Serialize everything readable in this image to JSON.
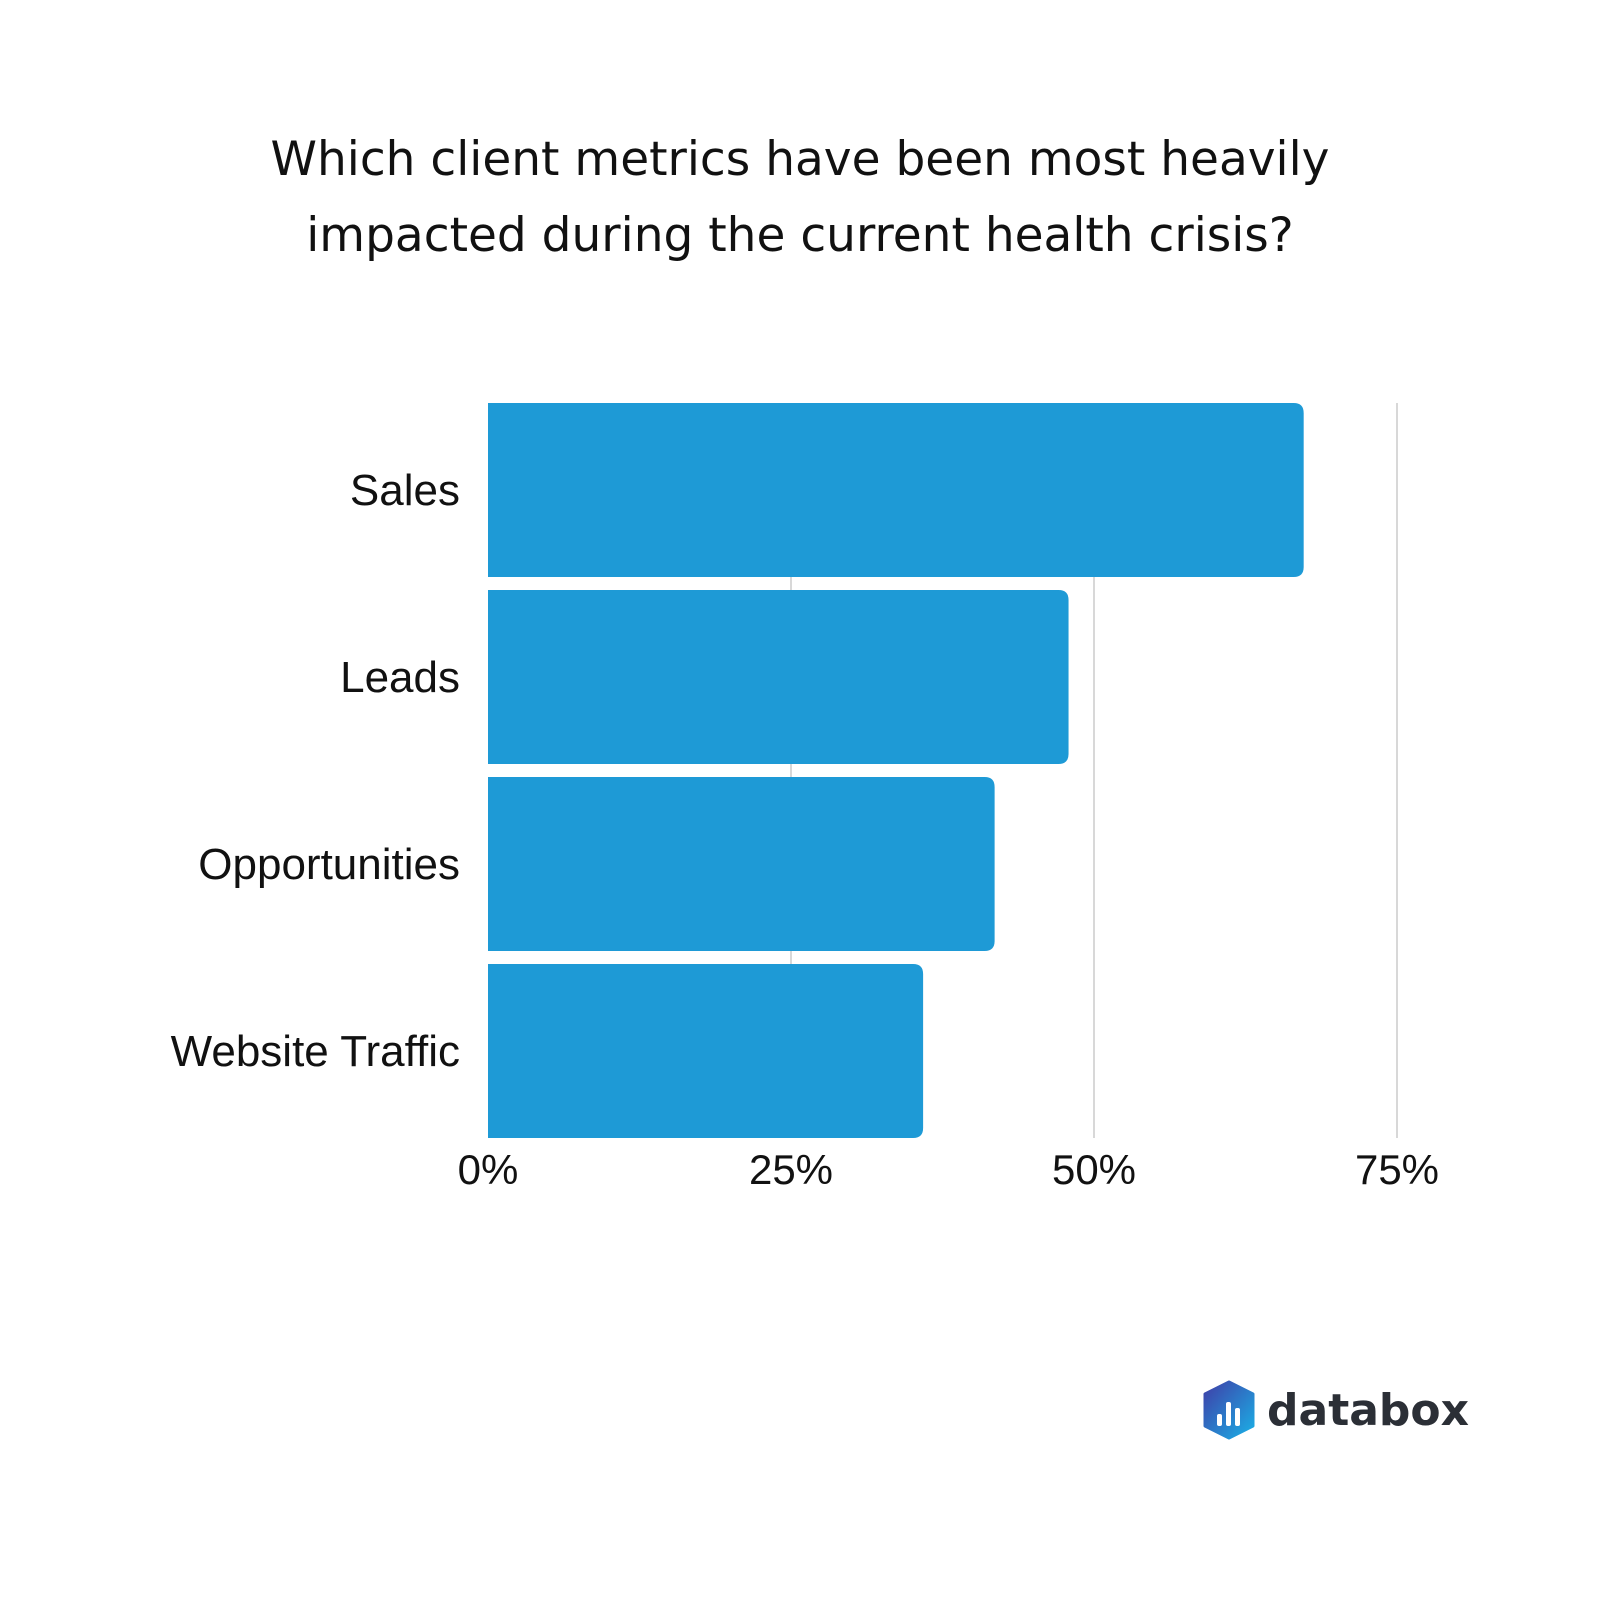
{
  "chart_data": {
    "type": "bar",
    "orientation": "horizontal",
    "title": "Which client metrics have been most heavily impacted during the current health crisis?",
    "title_lines": [
      "Which client metrics have been most heavily",
      "impacted during the current health crisis?"
    ],
    "categories": [
      "Sales",
      "Leads",
      "Opportunities",
      "Website Traffic"
    ],
    "values": [
      67.3,
      47.9,
      41.8,
      35.9
    ],
    "xlim": [
      0,
      75
    ],
    "xticks": [
      0,
      25,
      50,
      75
    ],
    "xtick_labels": [
      "0%",
      "25%",
      "50%",
      "75%"
    ],
    "xlabel": "",
    "ylabel": "",
    "grid": true,
    "bar_color": "#1e9ad6",
    "grid_color": "#cccccc"
  },
  "brand": {
    "name": "databox"
  }
}
